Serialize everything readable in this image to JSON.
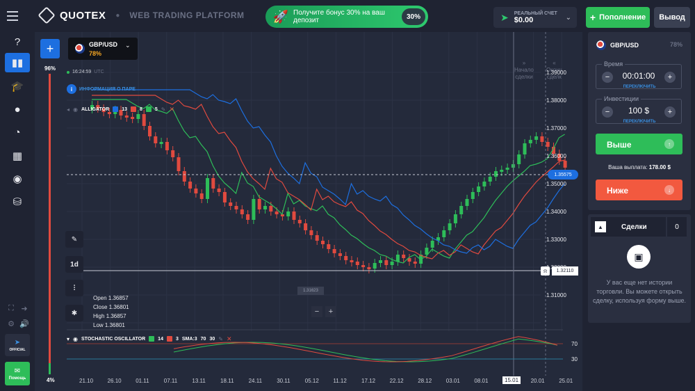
{
  "header": {
    "logo_text": "QUOTEX",
    "platform_label": "WEB TRADING PLATFORM",
    "bonus_text": "Получите бонус 30% на ваш депозит",
    "bonus_pct": "30%",
    "account_label": "РЕАЛЬНЫЙ СЧЕТ",
    "account_balance": "$0.00",
    "deposit_label": "Пополнение",
    "withdraw_label": "Вывод"
  },
  "sidebar": {
    "telegram_label": "OFFICIAL",
    "help_label": "Помощь"
  },
  "chart": {
    "sentiment_top": "96%",
    "sentiment_bottom": "4%",
    "asset": "GBP/USD",
    "asset_payout": "78%",
    "server_time": "16:24:59",
    "tz": "UTC",
    "pair_info_label": "ИНФОРМАЦИЯ О ПАРЕ",
    "alligator": {
      "name": "ALLIGATOR",
      "p1": "13",
      "p2": "8",
      "p3": "5",
      "c1": "#1d6fe0",
      "c2": "#e04a3f",
      "c3": "#2ebd59"
    },
    "timeframe": "1d",
    "ohlc": {
      "open_label": "Open",
      "open": "1.36857",
      "close_label": "Close",
      "close": "1.36801",
      "high_label": "High",
      "high": "1.36857",
      "low_label": "Low",
      "low": "1.36801"
    },
    "start_label_l1": "Начало",
    "start_label_l2": "сделки",
    "end_label_l1": "Оконч",
    "end_label_l2": "сделк",
    "current_price": "1.35575",
    "alarm_price": "1.32110",
    "crosshair_price": "1.31623",
    "price_ticks": [
      "1.39000",
      "1.38000",
      "1.37000",
      "1.36000",
      "1.35000",
      "1.34000",
      "1.33000",
      "1.32000",
      "1.31000"
    ],
    "stochastic": {
      "name": "STOCHASTIC OSCILLATOR",
      "k": "14",
      "d": "3",
      "sma": "SMA:3",
      "upper": "70",
      "lower": "30"
    },
    "x_ticks": [
      "21.10",
      "26.10",
      "01.11",
      "07.11",
      "13.11",
      "18.11",
      "24.11",
      "30.11",
      "05.12",
      "11.12",
      "17.12",
      "22.12",
      "28.12",
      "03.01",
      "08.01",
      "15.01",
      "20.01",
      "25.01"
    ],
    "x_highlight": "15.01"
  },
  "panel": {
    "asset": "GBP/USD",
    "payout_pct": "78%",
    "time_label": "Время",
    "time_value": "00:01:00",
    "switch_label": "ПЕРЕКЛЮЧИТЬ",
    "invest_label": "Инвестиции",
    "invest_value": "100 $",
    "up_label": "Выше",
    "payout_label": "Ваша выплата:",
    "payout_value": "178.00 $",
    "down_label": "Ниже"
  },
  "deals": {
    "title": "Сделки",
    "count": "0",
    "empty_text": "У вас еще нет истории торговли. Вы можете открыть сделку, используя форму выше."
  }
}
